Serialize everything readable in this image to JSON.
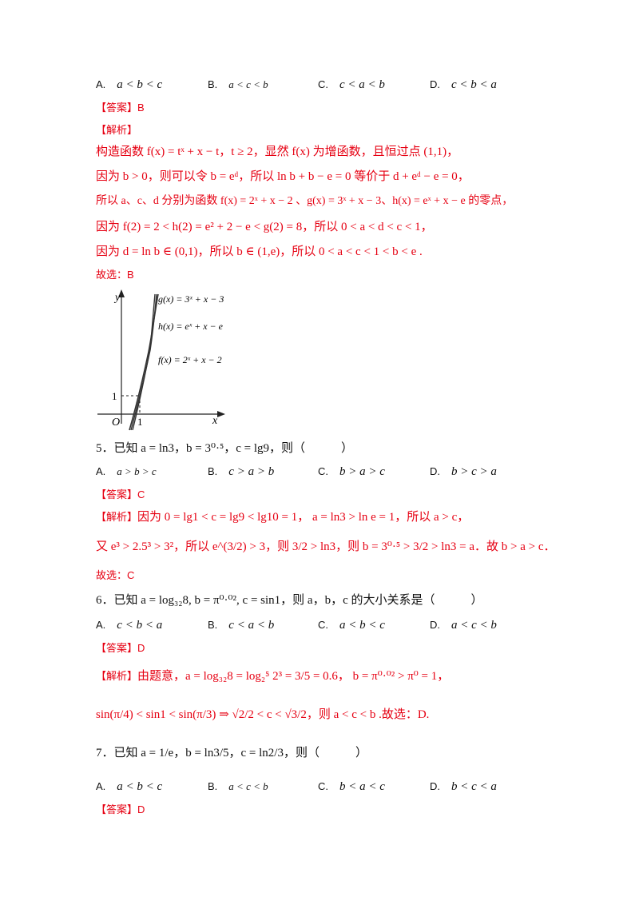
{
  "q4": {
    "options": [
      {
        "key": "A.",
        "math": "a < b < c"
      },
      {
        "key": "B.",
        "math": "a < c < b"
      },
      {
        "key": "C.",
        "math": "c < a < b"
      },
      {
        "key": "D.",
        "math": "c < b < a"
      }
    ],
    "answer_label": "【答案】",
    "answer": "B",
    "analysis_label": "【解析】",
    "lines": [
      "构造函数 f(x) = tˣ + x − t，t ≥ 2，显然 f(x) 为增函数，且恒过点 (1,1)，",
      "因为 b > 0，则可以令 b = eᵈ，所以 ln b + b − e = 0 等价于 d + eᵈ − e = 0，",
      "所以 a、c、d 分别为函数 f(x) = 2ˣ + x − 2 、g(x) = 3ˣ + x − 3、h(x) = eˣ + x − e 的零点，",
      "因为 f(2) = 2 < h(2) = e² + 2 − e < g(2) = 8，所以 0 < a < d < c < 1，",
      "因为 d = ln b ∈ (0,1)，所以 b ∈ (1,e)，所以 0 < a < c < 1 < b < e ."
    ],
    "conclusion": "故选：B",
    "graph": {
      "y_axis": "y",
      "x_axis": "x",
      "origin": "O",
      "tick_one_x": "1",
      "tick_one_y": "1",
      "g_label": "g(x) = 3ˣ + x − 3",
      "h_label": "h(x) = eˣ + x − e",
      "f_label": "f(x) = 2ˣ + x − 2"
    }
  },
  "q5": {
    "stem": "5．已知 a = ln3，b = 3⁰·⁵，c = lg9，则（　　　）",
    "options": [
      {
        "key": "A.",
        "math": "a > b > c"
      },
      {
        "key": "B.",
        "math": "c > a > b"
      },
      {
        "key": "C.",
        "math": "b > a > c"
      },
      {
        "key": "D.",
        "math": "b > c > a"
      }
    ],
    "answer_label": "【答案】",
    "answer": "C",
    "analysis_label": "【解析】",
    "line1": "因为 0 = lg1 < c = lg9 < lg10 = 1， a = ln3 > ln e = 1，所以 a > c，",
    "line2": "又 e³ > 2.5³ > 3²，所以 e^(3/2) > 3，则 3/2 > ln3，则 b = 3⁰·⁵ > 3/2 > ln3 = a．故 b > a > c．",
    "conclusion": "故选：C"
  },
  "q6": {
    "stem": "6．已知 a = log₃₂8, b = π⁰·⁰², c = sin1，则 a，b，c 的大小关系是（　　　）",
    "options": [
      {
        "key": "A.",
        "math": "c < b < a"
      },
      {
        "key": "B.",
        "math": "c < a < b"
      },
      {
        "key": "C.",
        "math": "a < b < c"
      },
      {
        "key": "D.",
        "math": "a < c < b"
      }
    ],
    "answer_label": "【答案】",
    "answer": "D",
    "analysis_label": "【解析】",
    "line1": "由题意，a = log₃₂8 = log₂⁵ 2³ = 3/5 = 0.6， b = π⁰·⁰² > π⁰ = 1，",
    "line2": "sin(π/4) < sin1 < sin(π/3) ⇒ √2/2 < c < √3/2，则 a < c < b .故选：D."
  },
  "q7": {
    "stem": "7．已知 a = 1/e，b = ln3/5，c = ln2/3，则（　　　）",
    "options": [
      {
        "key": "A.",
        "math": "a < b < c"
      },
      {
        "key": "B.",
        "math": "a < c < b"
      },
      {
        "key": "C.",
        "math": "b < a < c"
      },
      {
        "key": "D.",
        "math": "b < c < a"
      }
    ],
    "answer_label": "【答案】",
    "answer": "D"
  }
}
